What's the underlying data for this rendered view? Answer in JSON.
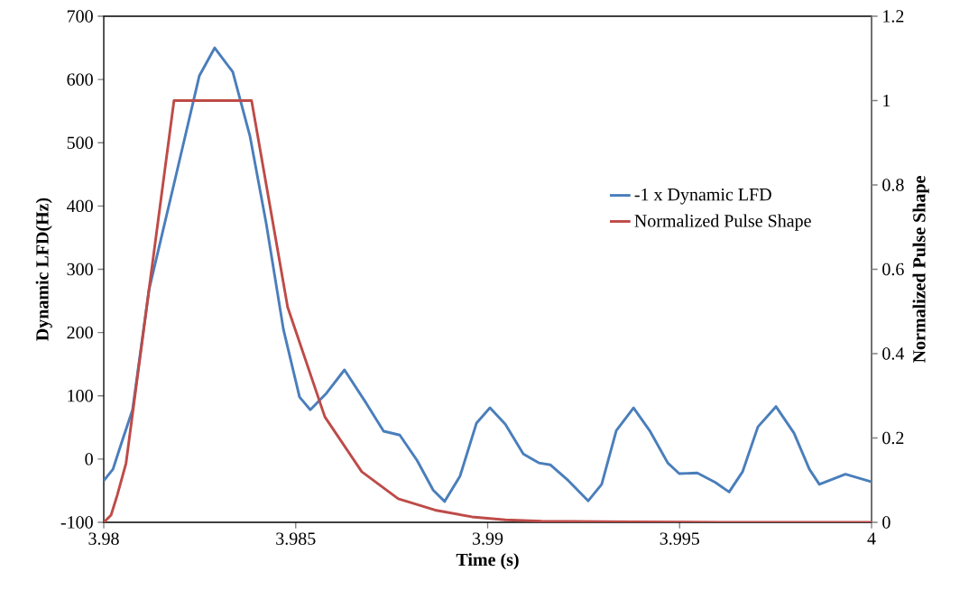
{
  "chart_data": {
    "type": "line",
    "xlabel": "Time (s)",
    "ylabel": "Dynamic LFD(Hz)",
    "y2label": "Normalized Pulse Shape",
    "xlim": [
      3.98,
      4.0
    ],
    "xticks": [
      3.98,
      3.985,
      3.99,
      3.995,
      4
    ],
    "ylim": [
      -100,
      700
    ],
    "yticks": [
      -100,
      0,
      100,
      200,
      300,
      400,
      500,
      600,
      700
    ],
    "y2lim": [
      0,
      1.2
    ],
    "y2ticks": [
      0,
      0.2,
      0.4,
      0.6,
      0.8,
      1,
      1.2
    ],
    "legend": "right",
    "marker": "none",
    "line_style": "solid",
    "series": [
      {
        "name": "-1 x Dynamic LFD",
        "color": "#4a7ebb",
        "axis": "y",
        "x": [
          3.98,
          3.98024,
          3.98047,
          3.98075,
          3.98118,
          3.98188,
          3.98249,
          3.98289,
          3.98336,
          3.98381,
          3.98423,
          3.98468,
          3.9851,
          3.98538,
          3.9858,
          3.98627,
          3.98684,
          3.98729,
          3.98771,
          3.98816,
          3.98858,
          3.98888,
          3.98928,
          3.98971,
          3.99006,
          3.99046,
          3.99093,
          3.99133,
          3.99163,
          3.9921,
          3.99262,
          3.99297,
          3.99335,
          3.9938,
          3.99422,
          3.99469,
          3.99499,
          3.99546,
          3.99593,
          3.99629,
          3.99664,
          3.99704,
          3.99751,
          3.99798,
          3.99838,
          3.99864,
          3.99932,
          4.0
        ],
        "values": [
          -34,
          -16,
          27,
          78,
          268,
          448,
          606,
          650,
          612,
          510,
          373,
          205,
          98,
          78,
          104,
          141,
          88,
          44,
          38,
          -2,
          -49,
          -67,
          -27,
          57,
          81,
          55,
          8,
          -6,
          -9,
          -34,
          -66,
          -40,
          45,
          81,
          45,
          -6,
          -23,
          -22,
          -37,
          -52,
          -20,
          51,
          83,
          41,
          -16,
          -40,
          -24,
          -36
        ]
      },
      {
        "name": "Normalized Pulse Shape",
        "color": "#be4b48",
        "axis": "y2",
        "x": [
          3.98,
          3.98019,
          3.98035,
          3.98058,
          3.98183,
          3.98385,
          3.98479,
          3.98576,
          3.98672,
          3.98767,
          3.98863,
          3.98959,
          3.99046,
          3.9914,
          3.99375,
          3.9961,
          4.0
        ],
        "values": [
          0,
          0.017,
          0.064,
          0.14,
          1.0,
          1.0,
          0.51,
          0.25,
          0.12,
          0.056,
          0.029,
          0.013,
          0.006,
          0.003,
          0.001,
          0,
          0
        ]
      }
    ]
  }
}
